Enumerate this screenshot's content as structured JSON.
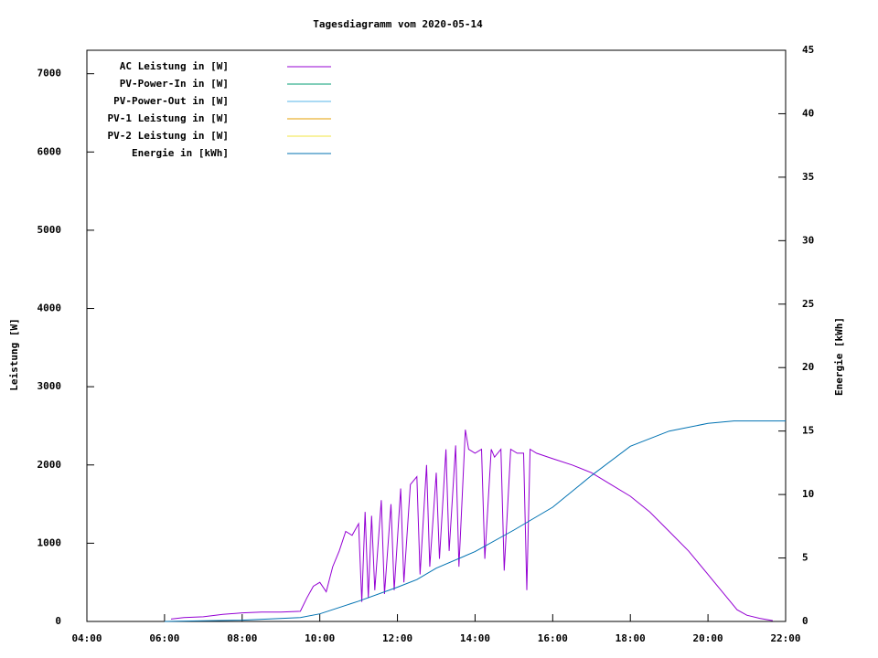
{
  "chart_data": {
    "type": "line",
    "title": "Tagesdiagramm vom 2020-05-14",
    "ylabel": "Leistung [W]",
    "y2label": "Energie [kWh]",
    "xlim": [
      "04:00",
      "22:00"
    ],
    "xticks": [
      "04:00",
      "06:00",
      "08:00",
      "10:00",
      "12:00",
      "14:00",
      "16:00",
      "18:00",
      "20:00",
      "22:00"
    ],
    "ylim": [
      0,
      7300
    ],
    "yticks": [
      0,
      1000,
      2000,
      3000,
      4000,
      5000,
      6000,
      7000
    ],
    "y2lim": [
      0,
      45
    ],
    "y2ticks": [
      0,
      5,
      10,
      15,
      20,
      25,
      30,
      35,
      40,
      45
    ],
    "legend": "top-left",
    "series": [
      {
        "name": "AC Leistung in [W]",
        "color": "#9400d3",
        "x": [
          "06:10",
          "06:30",
          "07:00",
          "07:30",
          "08:00",
          "08:30",
          "09:00",
          "09:30",
          "09:40",
          "09:50",
          "10:00",
          "10:10",
          "10:20",
          "10:30",
          "10:40",
          "10:50",
          "11:00",
          "11:05",
          "11:10",
          "11:15",
          "11:20",
          "11:25",
          "11:35",
          "11:40",
          "11:50",
          "11:55",
          "12:05",
          "12:10",
          "12:20",
          "12:30",
          "12:35",
          "12:45",
          "12:50",
          "13:00",
          "13:05",
          "13:15",
          "13:20",
          "13:30",
          "13:35",
          "13:45",
          "13:50",
          "14:00",
          "14:10",
          "14:15",
          "14:25",
          "14:30",
          "14:40",
          "14:45",
          "14:55",
          "15:05",
          "15:15",
          "15:20",
          "15:25",
          "15:35",
          "16:00",
          "16:30",
          "17:00",
          "17:30",
          "18:00",
          "18:30",
          "19:00",
          "19:30",
          "20:00",
          "20:30",
          "20:45",
          "21:00",
          "21:20",
          "21:40"
        ],
        "values": [
          30,
          50,
          60,
          90,
          110,
          120,
          120,
          130,
          300,
          450,
          500,
          380,
          700,
          900,
          1150,
          1100,
          1250,
          250,
          1400,
          300,
          1350,
          400,
          1550,
          350,
          1500,
          400,
          1700,
          500,
          1750,
          1850,
          600,
          2000,
          700,
          1900,
          800,
          2200,
          900,
          2250,
          700,
          2450,
          2200,
          2150,
          2200,
          800,
          2200,
          2100,
          2200,
          650,
          2200,
          2150,
          2150,
          400,
          2200,
          2150,
          2080,
          2000,
          1900,
          1750,
          1600,
          1400,
          1150,
          900,
          600,
          300,
          150,
          80,
          40,
          10
        ]
      },
      {
        "name": "PV-Power-In in [W]",
        "color": "#009e73",
        "x": [],
        "values": []
      },
      {
        "name": "PV-Power-Out in [W]",
        "color": "#56b4e9",
        "x": [],
        "values": []
      },
      {
        "name": "PV-1 Leistung in [W]",
        "color": "#e69f00",
        "x": [],
        "values": []
      },
      {
        "name": "PV-2 Leistung in [W]",
        "color": "#f0e442",
        "x": [],
        "values": []
      },
      {
        "name": "Energie in [kWh]",
        "color": "#0072b2",
        "axis": "y2",
        "x": [
          "06:00",
          "08:00",
          "09:30",
          "10:00",
          "11:00",
          "12:00",
          "12:30",
          "13:00",
          "14:00",
          "15:00",
          "16:00",
          "17:00",
          "18:00",
          "19:00",
          "20:00",
          "20:40",
          "22:00"
        ],
        "values": [
          0,
          0.1,
          0.3,
          0.6,
          1.6,
          2.7,
          3.3,
          4.2,
          5.5,
          7.2,
          9.0,
          11.5,
          13.8,
          15.0,
          15.6,
          15.8,
          15.8
        ]
      }
    ]
  }
}
